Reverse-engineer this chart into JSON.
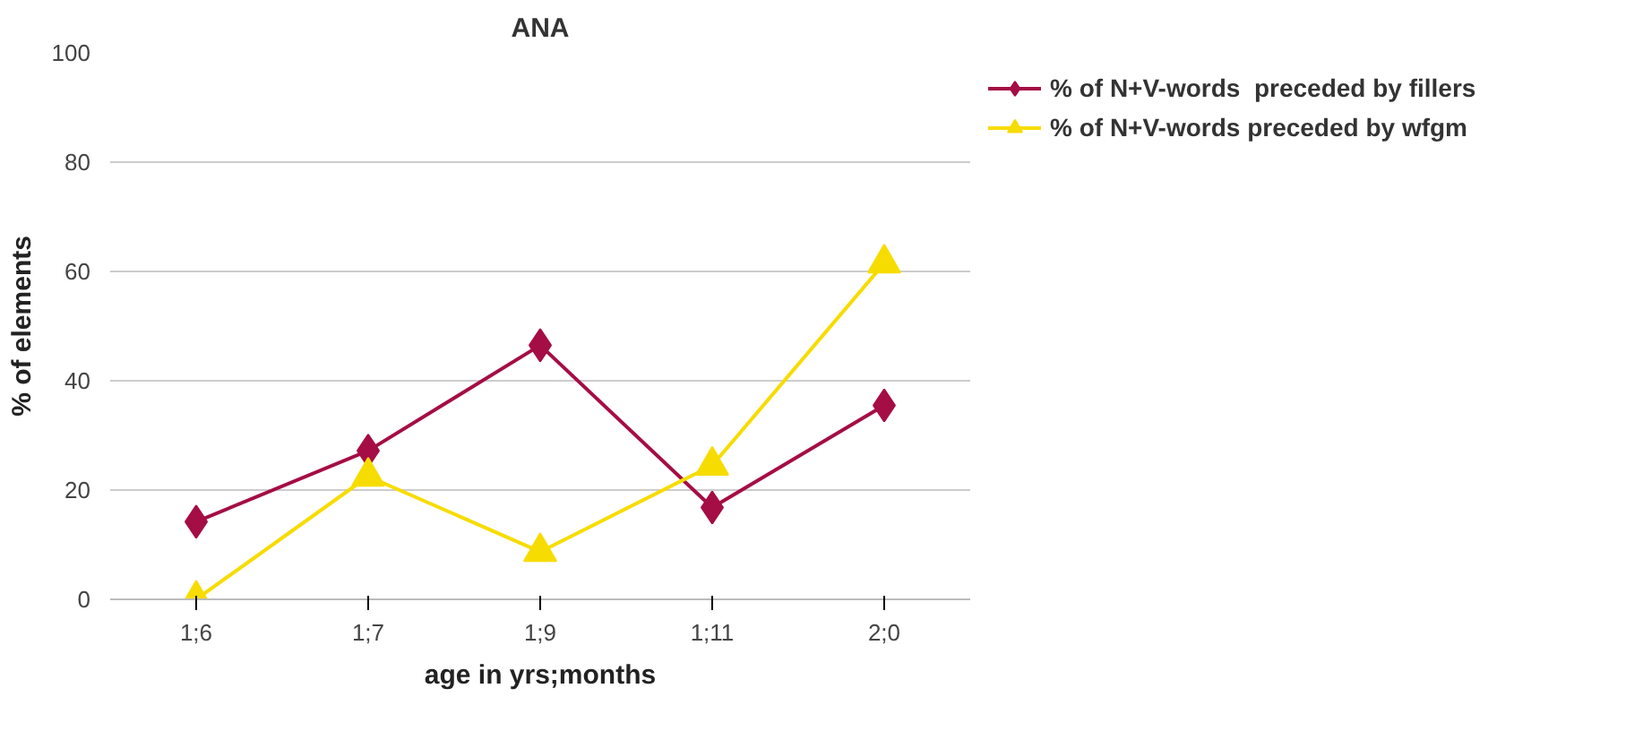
{
  "chart_data": {
    "type": "line",
    "title": "ANA",
    "xlabel": "age in yrs;months",
    "ylabel": "% of elements",
    "categories": [
      "1;6",
      "1;7",
      "1;9",
      "1;11",
      "2;0"
    ],
    "series": [
      {
        "name": "% of N+V-words  preceded by fillers",
        "color": "#a50d45",
        "values": [
          14.2,
          27.2,
          46.5,
          16.8,
          35.5
        ],
        "marker": "diamond"
      },
      {
        "name": "% of N+V-words preceded by wfgm",
        "color": "#f7dc00",
        "values": [
          0,
          22.5,
          8.7,
          24.5,
          61.5
        ],
        "marker": "triangle"
      }
    ],
    "ylim": [
      0,
      100
    ],
    "yticks": [
      0,
      20,
      40,
      60,
      80,
      100
    ],
    "grid": "y",
    "legend": "top right",
    "line_style": "solid"
  }
}
